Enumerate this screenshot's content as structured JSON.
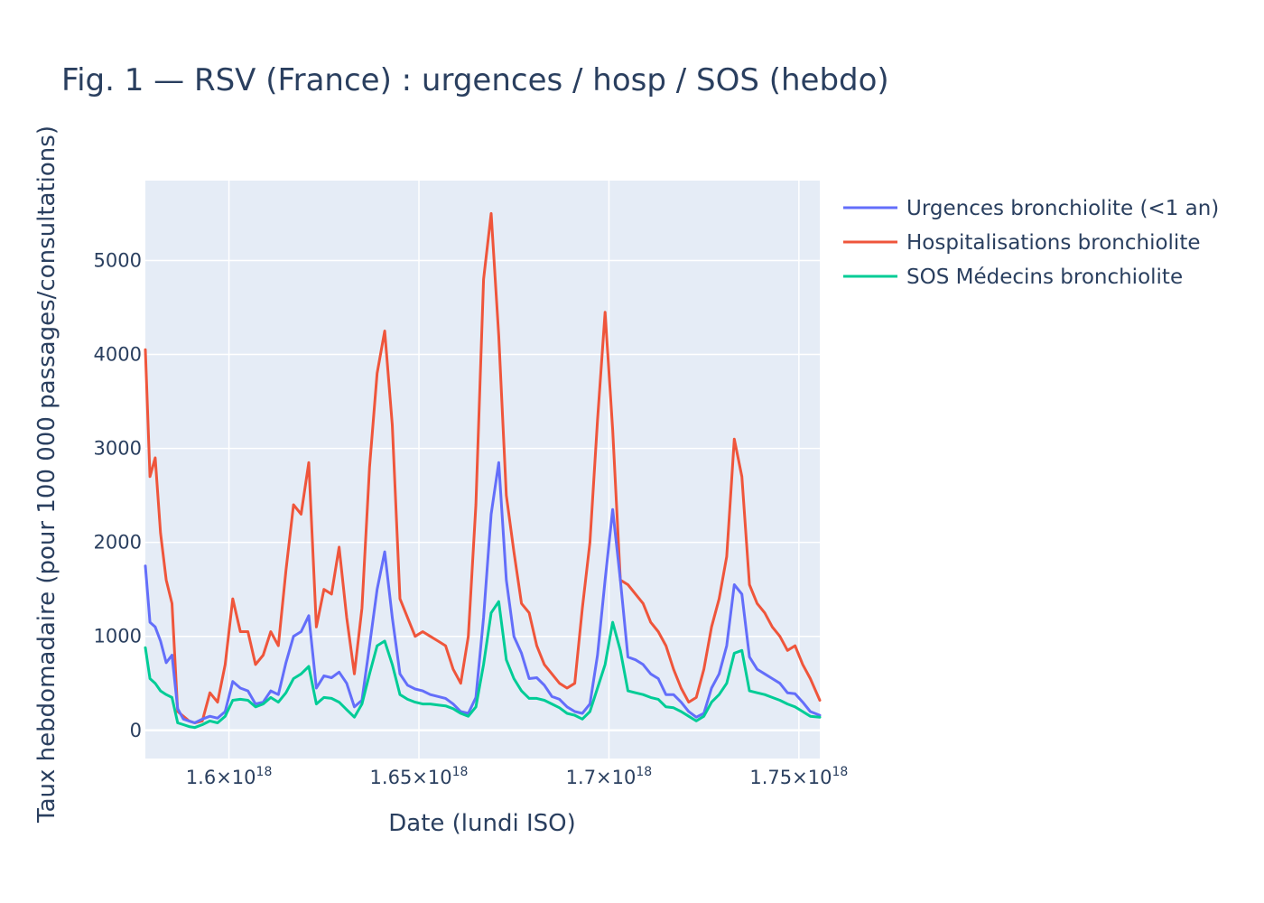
{
  "chart_data": {
    "type": "line",
    "title": "Fig. 1 — RSV (France) : urgences / hosp / SOS (hebdo)",
    "xlabel": "Date (lundi ISO)",
    "ylabel": "Taux hebdomadaire (pour 100 000 passages/consultations)",
    "xlim": [
      1.578e+18,
      1.7555e+18
    ],
    "ylim": [
      -300,
      5850
    ],
    "grid": true,
    "legend_position": "top-right outside",
    "x_ticks": [
      {
        "value": 1.6e+18,
        "label": "1.6×10",
        "exp": "18"
      },
      {
        "value": 1.65e+18,
        "label": "1.65×10",
        "exp": "18"
      },
      {
        "value": 1.7e+18,
        "label": "1.7×10",
        "exp": "18"
      },
      {
        "value": 1.75e+18,
        "label": "1.75×10",
        "exp": "18"
      }
    ],
    "y_ticks": [
      0,
      1000,
      2000,
      3000,
      4000,
      5000
    ],
    "x": [
      1.578e+18,
      1.5792e+18,
      1.5806e+18,
      1.582e+18,
      1.5835e+18,
      1.585e+18,
      1.5865e+18,
      1.588e+18,
      1.5895e+18,
      1.591e+18,
      1.593e+18,
      1.595e+18,
      1.597e+18,
      1.599e+18,
      1.601e+18,
      1.603e+18,
      1.605e+18,
      1.607e+18,
      1.609e+18,
      1.611e+18,
      1.613e+18,
      1.615e+18,
      1.617e+18,
      1.619e+18,
      1.621e+18,
      1.623e+18,
      1.625e+18,
      1.627e+18,
      1.629e+18,
      1.631e+18,
      1.633e+18,
      1.635e+18,
      1.637e+18,
      1.639e+18,
      1.641e+18,
      1.643e+18,
      1.645e+18,
      1.647e+18,
      1.649e+18,
      1.651e+18,
      1.653e+18,
      1.655e+18,
      1.657e+18,
      1.659e+18,
      1.661e+18,
      1.663e+18,
      1.665e+18,
      1.667e+18,
      1.669e+18,
      1.671e+18,
      1.673e+18,
      1.675e+18,
      1.677e+18,
      1.679e+18,
      1.681e+18,
      1.683e+18,
      1.685e+18,
      1.687e+18,
      1.689e+18,
      1.691e+18,
      1.693e+18,
      1.695e+18,
      1.697e+18,
      1.699e+18,
      1.701e+18,
      1.703e+18,
      1.705e+18,
      1.707e+18,
      1.709e+18,
      1.711e+18,
      1.713e+18,
      1.715e+18,
      1.717e+18,
      1.719e+18,
      1.721e+18,
      1.723e+18,
      1.725e+18,
      1.727e+18,
      1.729e+18,
      1.731e+18,
      1.733e+18,
      1.735e+18,
      1.737e+18,
      1.739e+18,
      1.741e+18,
      1.743e+18,
      1.745e+18,
      1.747e+18,
      1.749e+18,
      1.751e+18,
      1.753e+18,
      1.7555e+18
    ],
    "series": [
      {
        "name": "Urgences bronchiolite (<1 an)",
        "color": "#636efa",
        "values": [
          1750,
          1150,
          1100,
          950,
          720,
          800,
          230,
          120,
          100,
          80,
          120,
          150,
          130,
          200,
          520,
          450,
          420,
          280,
          300,
          420,
          380,
          720,
          1000,
          1050,
          1220,
          450,
          580,
          560,
          620,
          500,
          250,
          320,
          900,
          1500,
          1900,
          1200,
          600,
          480,
          440,
          420,
          380,
          360,
          340,
          280,
          200,
          180,
          350,
          1200,
          2300,
          2850,
          1600,
          1000,
          820,
          550,
          560,
          480,
          360,
          330,
          250,
          200,
          180,
          280,
          800,
          1600,
          2350,
          1600,
          780,
          750,
          700,
          600,
          550,
          380,
          380,
          300,
          200,
          140,
          180,
          450,
          600,
          900,
          1550,
          1450,
          780,
          650,
          600,
          550,
          500,
          400,
          390,
          300,
          200,
          160
        ]
      },
      {
        "name": "Hospitalisations bronchiolite",
        "color": "#ef553b",
        "values": [
          4050,
          2700,
          2900,
          2100,
          1600,
          1350,
          200,
          150,
          100,
          80,
          100,
          400,
          300,
          700,
          1400,
          1050,
          1050,
          700,
          800,
          1050,
          900,
          1700,
          2400,
          2300,
          2850,
          1100,
          1500,
          1450,
          1950,
          1200,
          600,
          1300,
          2800,
          3800,
          4250,
          3250,
          1400,
          1200,
          1000,
          1050,
          1000,
          950,
          900,
          650,
          500,
          1000,
          2400,
          4800,
          5500,
          4200,
          2500,
          1900,
          1350,
          1250,
          900,
          700,
          600,
          500,
          450,
          500,
          1300,
          2000,
          3300,
          4450,
          3200,
          1600,
          1550,
          1450,
          1350,
          1150,
          1050,
          900,
          650,
          450,
          300,
          350,
          650,
          1100,
          1400,
          1850,
          3100,
          2700,
          1550,
          1350,
          1250,
          1100,
          1000,
          850,
          900,
          700,
          550,
          320
        ]
      },
      {
        "name": "SOS Médecins bronchiolite",
        "color": "#00cc96",
        "values": [
          880,
          550,
          500,
          420,
          380,
          350,
          80,
          60,
          40,
          30,
          60,
          100,
          80,
          150,
          320,
          330,
          320,
          250,
          280,
          350,
          300,
          400,
          550,
          600,
          680,
          280,
          350,
          340,
          300,
          220,
          140,
          280,
          600,
          900,
          950,
          700,
          380,
          330,
          300,
          280,
          280,
          270,
          260,
          230,
          180,
          150,
          250,
          700,
          1250,
          1370,
          750,
          550,
          420,
          340,
          340,
          320,
          280,
          240,
          180,
          160,
          120,
          200,
          450,
          700,
          1150,
          850,
          420,
          400,
          380,
          350,
          330,
          250,
          240,
          200,
          150,
          100,
          150,
          300,
          380,
          500,
          820,
          850,
          420,
          400,
          380,
          350,
          320,
          280,
          250,
          200,
          150,
          140
        ]
      }
    ]
  }
}
